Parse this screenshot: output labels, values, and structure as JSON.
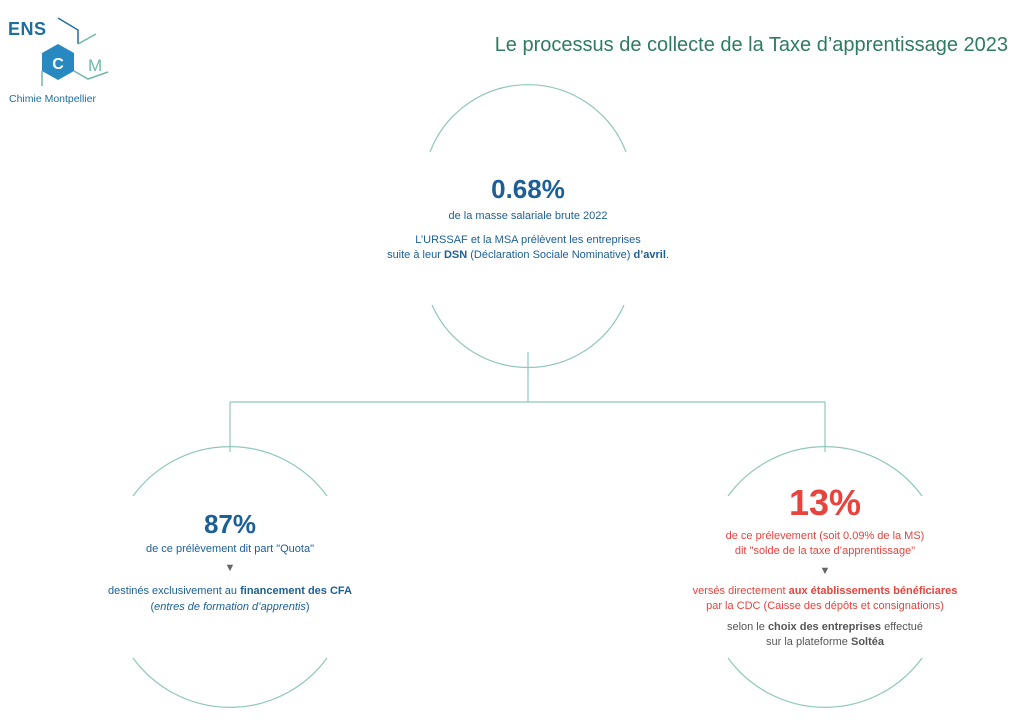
{
  "logo": {
    "ens": "ENS",
    "c": "C",
    "m": "M",
    "subtitle": "Chimie Montpellier"
  },
  "title": "Le processus de collecte de la Taxe d’apprentissage 2023",
  "top": {
    "percent": "0.68%",
    "subtitle": "de la masse salariale brute 2022",
    "line1": "L’URSSAF et la MSA prélèvent les entreprises",
    "line2_a": "suite à leur ",
    "line2_b": "DSN",
    "line2_c": " (Déclaration Sociale Nominative) ",
    "line2_d": "d’avril",
    "line2_e": "."
  },
  "left": {
    "percent": "87%",
    "subtitle": "de ce prélèvement dit part \"Quota\"",
    "arrow": "▼",
    "line1_a": "destinés exclusivement au ",
    "line1_b": "financement des CFA",
    "line2_a": "(",
    "line2_b": "entres de formation d’apprentis",
    "line2_c": ")"
  },
  "right": {
    "percent": "13%",
    "subtitle1": "de ce prélevement (soit 0.09% de la MS)",
    "subtitle2": "dit \"solde de la taxe d’apprentissage\"",
    "arrow": "▼",
    "line1_a": "versés directement ",
    "line1_b": "aux établissements bénéficiares",
    "line2": "par la CDC (Caisse des dépôts et consignations)",
    "line3_a": "selon le ",
    "line3_b": "choix des entreprises",
    "line3_c": " effectué",
    "line4_a": "sur la plateforme ",
    "line4_b": "Soltéa"
  },
  "colors": {
    "teal_line": "#8fc7bb",
    "blue": "#1c5f96",
    "red": "#e8433d",
    "title_green": "#2f7a63"
  }
}
